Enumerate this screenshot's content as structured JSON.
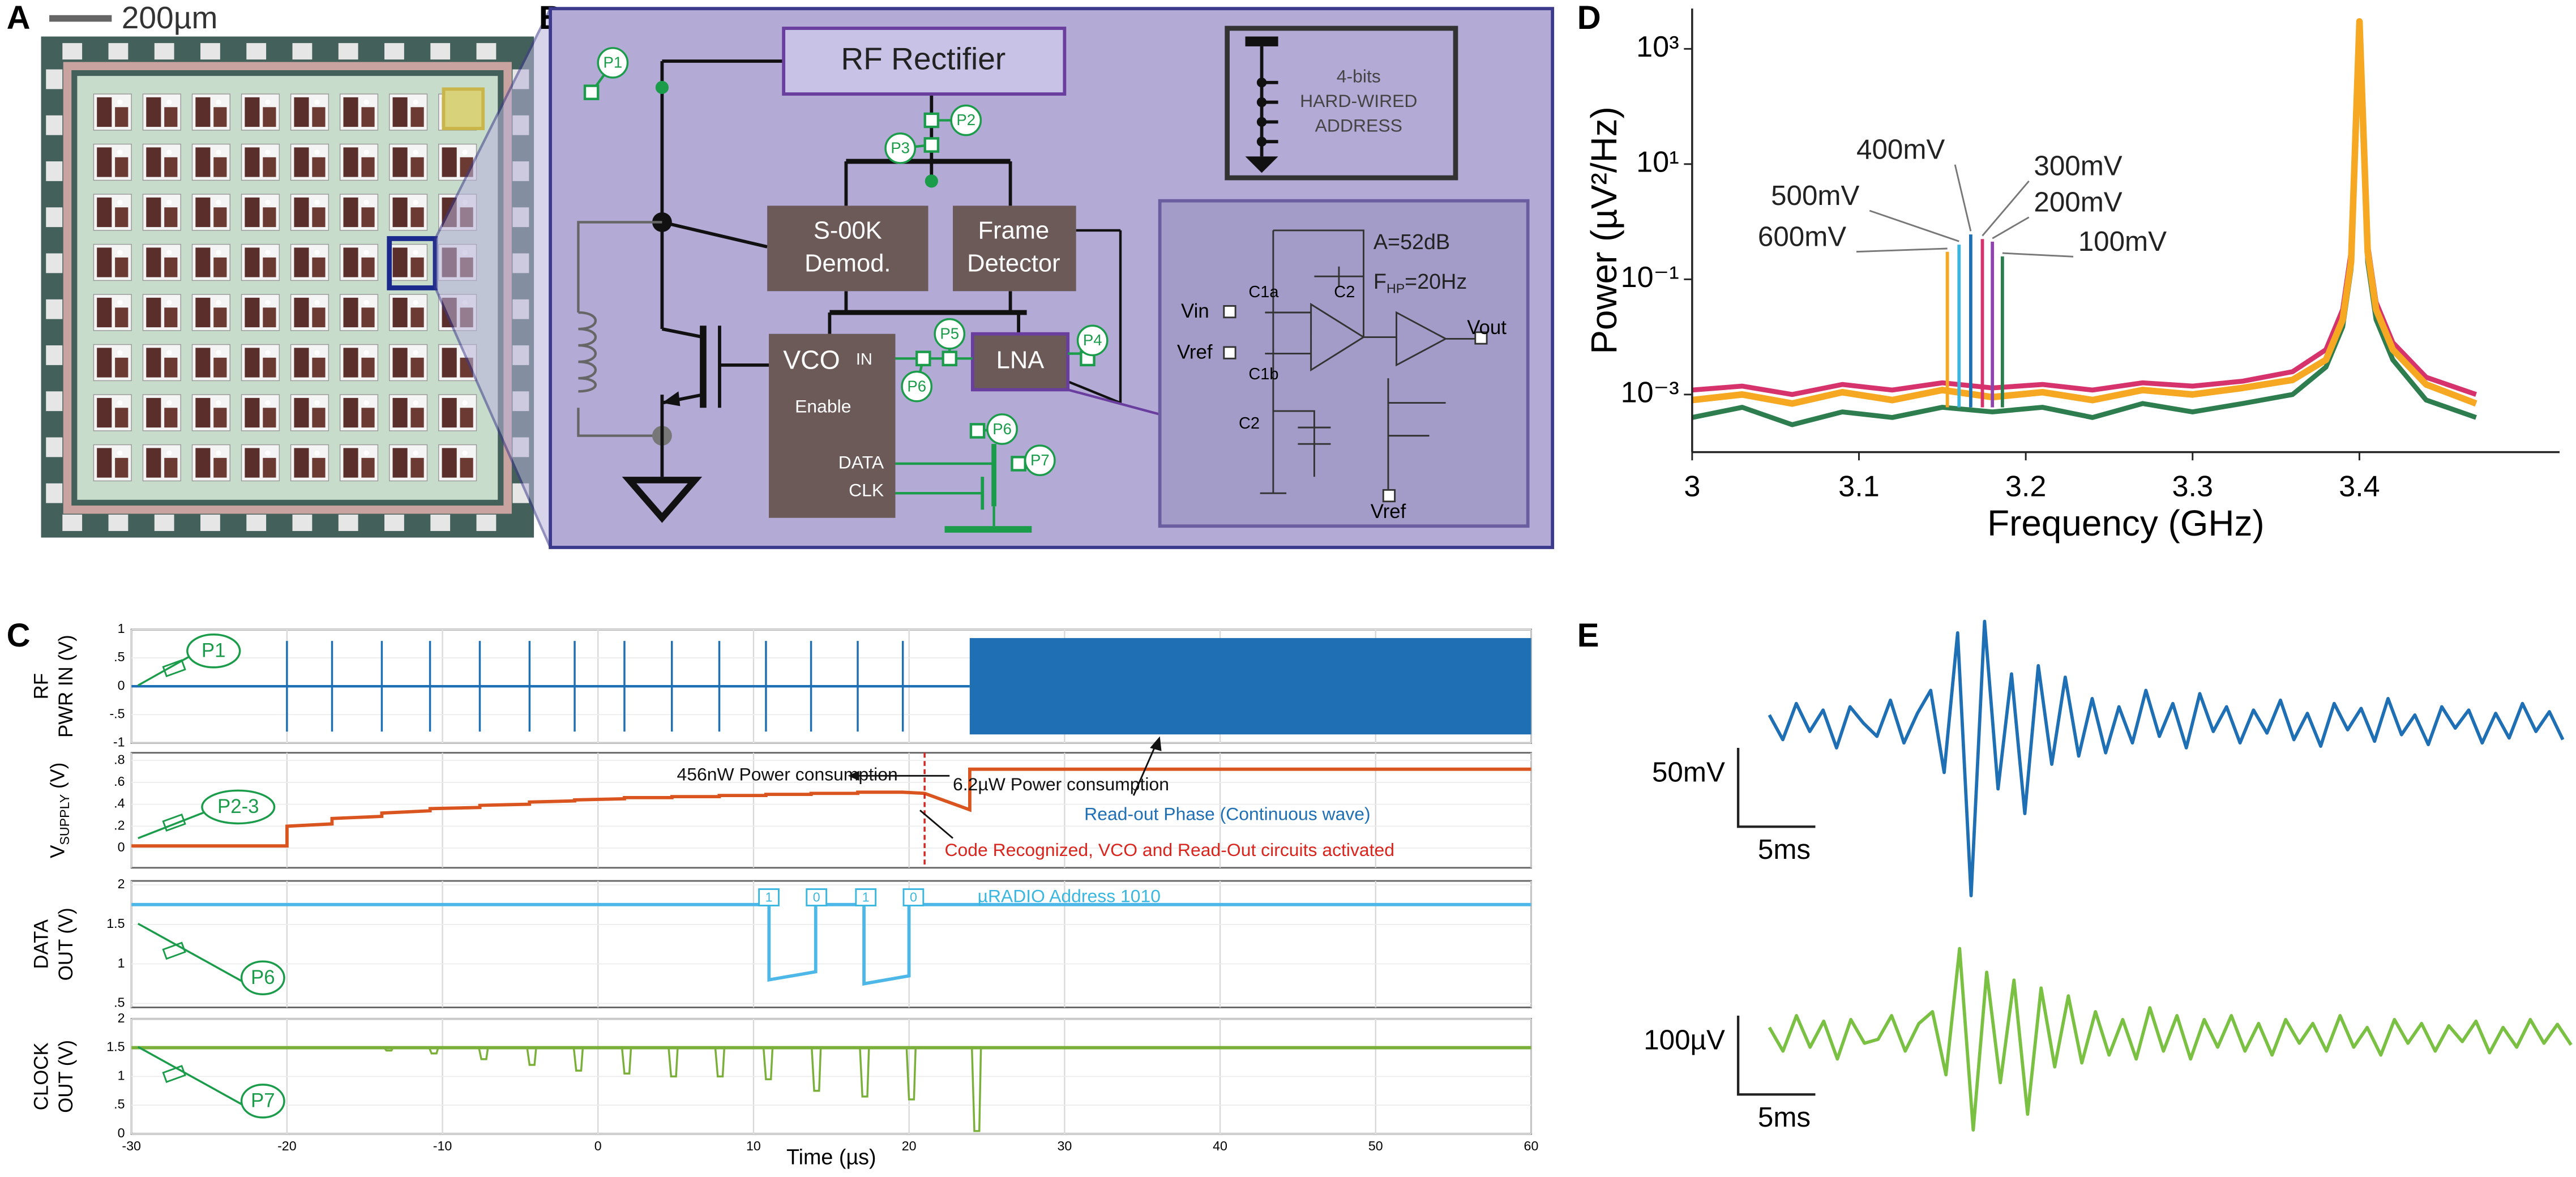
{
  "A": {
    "label": "A",
    "scale": "200µm"
  },
  "B": {
    "label": "B",
    "rectifier": "RF Rectifier",
    "demod": [
      "S-00K",
      "Demod."
    ],
    "frame": [
      "Frame",
      "Detector"
    ],
    "vco": "VCO",
    "vco_in": "IN",
    "vco_enable": "Enable",
    "vco_data": "DATA",
    "vco_clk": "CLK",
    "lna": "LNA",
    "address": [
      "4-bits",
      "HARD-WIRED",
      "ADDRESS"
    ],
    "probes": [
      "P1",
      "P2",
      "P3",
      "P4",
      "P5",
      "P6",
      "P6",
      "P7"
    ],
    "lna_detail": {
      "gain": "A=52dB",
      "fhp": "F",
      "fhp_sub": "HP",
      "fhp_value": "=20Hz",
      "vin": "Vin",
      "vref": "Vref",
      "c1a": "C1a",
      "c1b": "C1b",
      "c2a": "C2",
      "c2b": "C2",
      "vout": "Vout",
      "vref2": "Vref"
    }
  },
  "C": {
    "label": "C",
    "xlabel": "Time (µs)",
    "xlim": [
      -30,
      60
    ],
    "xticks": [
      -30,
      -20,
      -10,
      0,
      10,
      20,
      30,
      40,
      50,
      60
    ],
    "marker_time": 21,
    "plots": [
      {
        "ylabel": [
          "RF",
          "PWR IN (V)"
        ],
        "ylim": [
          -1,
          1
        ],
        "yticks": [
          1,
          {
            "value": 0.5,
            "label": ".5"
          },
          0,
          {
            "value": -0.5,
            "label": "-.5"
          },
          -1
        ],
        "color": "#1f6fb5",
        "baseline": 0,
        "pulse_times": [
          -20,
          -17.1,
          -13.9,
          -10.8,
          -7.6,
          -4.4,
          -1.5,
          1.7,
          4.75,
          7.8,
          10.8,
          13.7,
          16.7,
          19.6
        ],
        "pulse_amplitude": 0.8,
        "cw_start": 23.9,
        "cw_end": 60,
        "cw_amplitude": 0.85
      },
      {
        "ylabel": [
          "V",
          "SUPPLY",
          " (V)"
        ],
        "ylim": [
          -0.18,
          0.87
        ],
        "yticks": [
          {
            "value": 0.8,
            "label": ".8"
          },
          {
            "value": 0.6,
            "label": ".6"
          },
          {
            "value": 0.4,
            "label": ".4"
          },
          {
            "value": 0.2,
            "label": ".2"
          },
          0
        ],
        "color": "#d9541e",
        "x": [
          -30,
          -20,
          -20,
          -17.1,
          -17.1,
          -13.9,
          -13.9,
          -10.8,
          -10.8,
          -7.6,
          -7.6,
          -4.4,
          -4.4,
          -1.5,
          -1.5,
          1.7,
          1.7,
          4.75,
          4.75,
          7.8,
          7.8,
          10.8,
          10.8,
          13.7,
          13.7,
          16.7,
          16.7,
          19.6,
          21,
          23.9,
          23.9,
          60
        ],
        "values": [
          0.02,
          0.02,
          0.2,
          0.22,
          0.27,
          0.29,
          0.32,
          0.34,
          0.36,
          0.37,
          0.39,
          0.4,
          0.42,
          0.43,
          0.44,
          0.45,
          0.46,
          0.46,
          0.47,
          0.47,
          0.48,
          0.48,
          0.49,
          0.49,
          0.5,
          0.5,
          0.51,
          0.51,
          0.5,
          0.35,
          0.72,
          0.72
        ]
      },
      {
        "ylabel": [
          "DATA",
          "OUT (V)"
        ],
        "ylim": [
          0.45,
          2.05
        ],
        "yticks": [
          2,
          {
            "value": 1.5,
            "label": "1.5"
          },
          1,
          {
            "value": 0.5,
            "label": ".5"
          }
        ],
        "color": "#4db8e8",
        "x": [
          -30,
          11,
          11,
          14,
          14,
          17.1,
          17.1,
          20,
          20,
          60
        ],
        "values": [
          1.75,
          1.75,
          0.8,
          0.9,
          1.75,
          1.75,
          0.75,
          0.85,
          1.75,
          1.75
        ]
      },
      {
        "ylabel": [
          "CLOCK",
          "OUT (V)"
        ],
        "ylim": [
          0,
          2
        ],
        "yticks": [
          2,
          1.5,
          1,
          {
            "value": 0.5,
            "label": ".5"
          },
          0
        ],
        "color": "#7ab03a",
        "baseline": 1.5,
        "dip_times": [
          -13.6,
          -10.7,
          -7.5,
          -4.4,
          -1.4,
          1.7,
          4.7,
          7.7,
          10.8,
          13.9,
          17,
          20,
          24.2
        ],
        "dip_values": [
          1.45,
          1.4,
          1.3,
          1.2,
          1.1,
          1.05,
          1,
          1,
          0.95,
          0.75,
          0.65,
          0.6,
          0.05
        ]
      }
    ],
    "annotations": {
      "low_power": "456nW Power consumption",
      "high_power": "6.2µW Power consumption",
      "readout": "Read-out Phase (Continuous wave)",
      "code": "Code Recognized, VCO and Read-Out circuits activated",
      "address": "µRADIO Address 1010",
      "bits": [
        "1",
        "0",
        "1",
        "0"
      ]
    },
    "probes": [
      "P1",
      "P2-3",
      "P6",
      "P7"
    ]
  },
  "D": {
    "label": "D",
    "type": "line",
    "xlabel": "Frequency (GHz)",
    "ylabel": "Power (µV²/Hz)",
    "log_y": true,
    "xlim": [
      3,
      3.52
    ],
    "xticks": [
      3,
      3.1,
      3.2,
      3.3,
      3.4
    ],
    "ylim": [
      0.0001,
      5000
    ],
    "yticks": [
      {
        "value": 1000,
        "label": "10³"
      },
      {
        "value": 10,
        "label": "10¹"
      },
      {
        "value": 0.1,
        "label": "10⁻¹"
      },
      {
        "value": 0.001,
        "label": "10⁻³"
      }
    ],
    "x": [
      3.0,
      3.03,
      3.06,
      3.09,
      3.12,
      3.15,
      3.18,
      3.21,
      3.24,
      3.27,
      3.3,
      3.33,
      3.36,
      3.38,
      3.39,
      3.395,
      3.4,
      3.405,
      3.41,
      3.42,
      3.44,
      3.47
    ],
    "series": [
      {
        "color": "#2e7d4f",
        "values": [
          0.0004,
          0.0006,
          0.0003,
          0.0005,
          0.0004,
          0.0006,
          0.0005,
          0.0006,
          0.0004,
          0.0007,
          0.0005,
          0.0007,
          0.001,
          0.003,
          0.015,
          0.15,
          1500,
          0.2,
          0.02,
          0.004,
          0.0008,
          0.0004
        ]
      },
      {
        "color": "#d6336c",
        "values": [
          0.0012,
          0.0014,
          0.001,
          0.0015,
          0.0012,
          0.0016,
          0.0013,
          0.0015,
          0.0012,
          0.0016,
          0.0014,
          0.0017,
          0.0025,
          0.006,
          0.03,
          0.3,
          2000,
          0.4,
          0.04,
          0.008,
          0.002,
          0.001
        ]
      },
      {
        "color": "#f7a823",
        "values": [
          0.0008,
          0.001,
          0.0007,
          0.0011,
          0.0008,
          0.0012,
          0.0009,
          0.0011,
          0.0008,
          0.0012,
          0.001,
          0.0013,
          0.0018,
          0.004,
          0.02,
          0.2,
          3000,
          0.3,
          0.03,
          0.006,
          0.0015,
          0.0007
        ]
      }
    ],
    "spikes": {
      "x": [
        3.153,
        3.16,
        3.167,
        3.174,
        3.18,
        3.186
      ],
      "values": [
        0.3,
        0.4,
        0.6,
        0.5,
        0.45,
        0.25
      ],
      "colors": [
        "#f7a823",
        "#3ab7e0",
        "#1f6fb5",
        "#d6336c",
        "#8e44ad",
        "#2e7d4f"
      ],
      "labels": [
        "600mV",
        "500mV",
        "400mV",
        "300mV",
        "200mV",
        "100mV"
      ]
    }
  },
  "E": {
    "label": "E",
    "traces": [
      {
        "color": "#1f6fb5",
        "scale_v": "50mV",
        "scale_t": "5ms",
        "values": [
          5,
          -10,
          12,
          -5,
          8,
          -15,
          10,
          0,
          -8,
          14,
          -12,
          6,
          20,
          -30,
          55,
          -105,
          62,
          -40,
          30,
          -55,
          35,
          -25,
          28,
          -20,
          15,
          -18,
          10,
          -12,
          20,
          -8,
          12,
          -15,
          18,
          -5,
          10,
          -12,
          8,
          -6,
          14,
          -10,
          6,
          -14,
          12,
          -4,
          9,
          -11,
          15,
          -7,
          5,
          -13,
          10,
          -3,
          8,
          -12,
          6,
          -9,
          12,
          -5,
          7,
          -10
        ]
      },
      {
        "color": "#7ac143",
        "scale_v": "100µV",
        "scale_t": "5ms",
        "values": [
          10,
          -20,
          25,
          -15,
          18,
          -30,
          20,
          -10,
          -5,
          25,
          -20,
          15,
          30,
          -50,
          110,
          -120,
          80,
          -60,
          70,
          -100,
          60,
          -40,
          50,
          -35,
          30,
          -25,
          20,
          -30,
          35,
          -20,
          25,
          -30,
          20,
          -15,
          25,
          -20,
          15,
          -25,
          20,
          -10,
          15,
          -20,
          25,
          -15,
          10,
          -25,
          20,
          -10,
          15,
          -20,
          12,
          -8,
          18,
          -22,
          10,
          -15,
          20,
          -10,
          14,
          -12
        ]
      }
    ]
  }
}
